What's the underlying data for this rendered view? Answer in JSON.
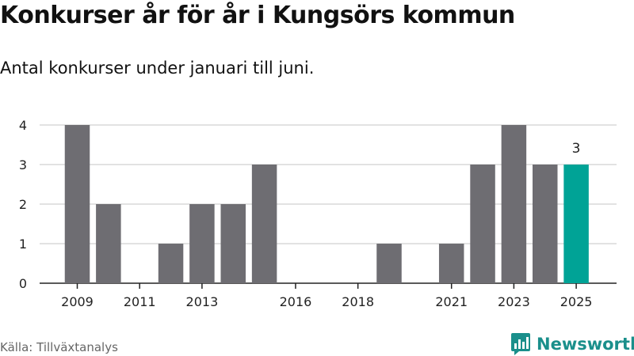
{
  "header": {
    "title": "Konkurser år för år i Kungsörs kommun",
    "subtitle": "Antal konkurser under januari till juni."
  },
  "footer": {
    "source": "Källa: Tillväxtanalys",
    "brand": "Newsworthy"
  },
  "colors": {
    "bar": "#6e6d72",
    "highlight": "#00a396",
    "grid": "#d9d9d9",
    "axis": "#222222",
    "brand": "#1a8f8b"
  },
  "chart_data": {
    "type": "bar",
    "categories": [
      "2009",
      "2010",
      "2011",
      "2012",
      "2013",
      "2014",
      "2015",
      "2016",
      "2017",
      "2018",
      "2019",
      "2020",
      "2021",
      "2022",
      "2023",
      "2024",
      "2025"
    ],
    "values": [
      4,
      2,
      0,
      1,
      2,
      2,
      3,
      0,
      0,
      0,
      1,
      0,
      1,
      3,
      4,
      3,
      3
    ],
    "x_tick_labels": [
      "2009",
      "2011",
      "2013",
      "2016",
      "2018",
      "2021",
      "2023",
      "2025"
    ],
    "y_ticks": [
      0,
      1,
      2,
      3,
      4
    ],
    "ylim": [
      0,
      4
    ],
    "highlight_category": "2025",
    "highlight_label": "3",
    "grid": true,
    "title": "Konkurser år för år i Kungsörs kommun",
    "subtitle": "Antal konkurser under januari till juni.",
    "xlabel": "",
    "ylabel": ""
  }
}
